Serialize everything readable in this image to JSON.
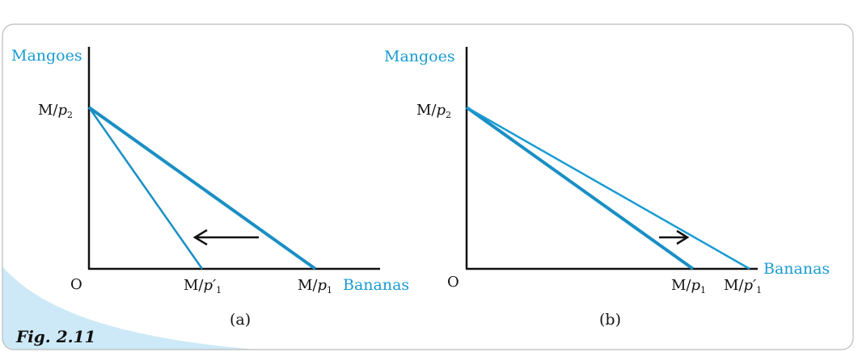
{
  "figure": {
    "caption": "Fig. 2.11",
    "accent_color": "#1a9bd2",
    "axis_label_color": "#1a9bd2",
    "line_color": "#1a8fc4",
    "arrow_color": "#111111",
    "border_color": "#bcbcbc",
    "wave_color": "#cde9f7"
  },
  "panels": [
    {
      "id": "a",
      "label": "(a)",
      "y_axis_name": "Mangoes",
      "x_axis_name": "Bananas",
      "origin": "O",
      "y_intercept": {
        "main": "M/",
        "var": "p",
        "sub": "2"
      },
      "x_intercepts": [
        {
          "main": "M/",
          "var": "p′",
          "sub": "1"
        },
        {
          "main": "M/",
          "var": "p",
          "sub": "1"
        }
      ],
      "arrow_direction": "left"
    },
    {
      "id": "b",
      "label": "(b)",
      "y_axis_name": "Mangoes",
      "x_axis_name": "Bananas",
      "origin": "O",
      "y_intercept": {
        "main": "M/",
        "var": "p",
        "sub": "2"
      },
      "x_intercepts": [
        {
          "main": "M/",
          "var": "p",
          "sub": "1"
        },
        {
          "main": "M/",
          "var": "p′",
          "sub": "1"
        }
      ],
      "arrow_direction": "right"
    }
  ]
}
